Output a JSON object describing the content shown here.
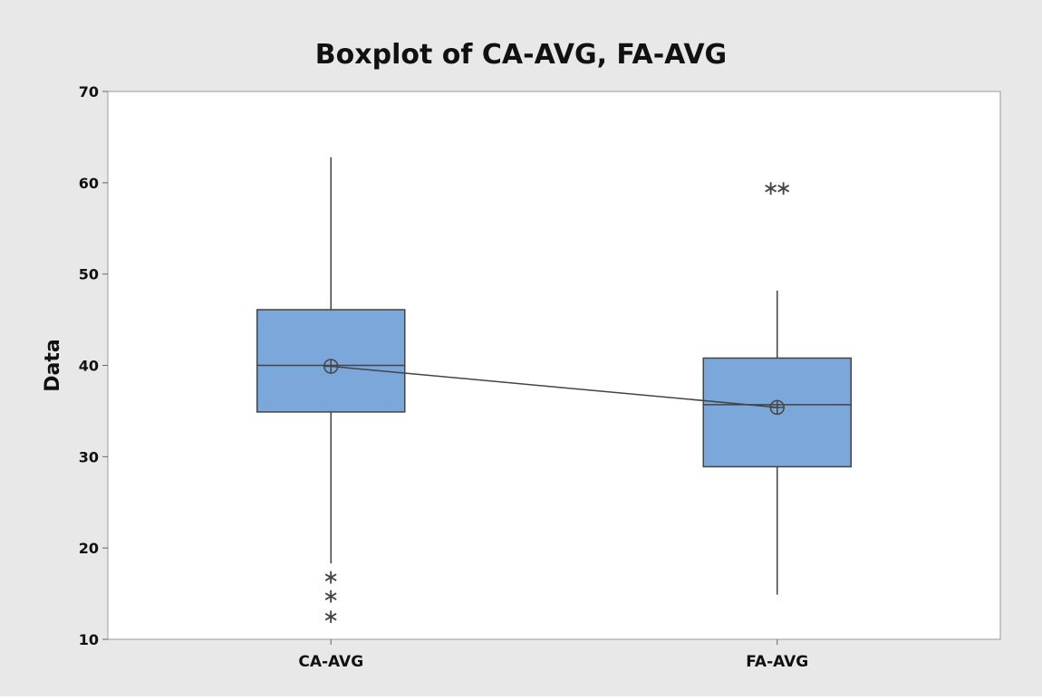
{
  "chart_data": {
    "type": "boxplot",
    "title": "Boxplot of CA-AVG, FA-AVG",
    "xlabel": "",
    "ylabel": "Data",
    "ylim": [
      10,
      70
    ],
    "yticks": [
      10,
      20,
      30,
      40,
      50,
      60,
      70
    ],
    "grid": false,
    "categories": [
      "CA-AVG",
      "FA-AVG"
    ],
    "series": [
      {
        "category": "CA-AVG",
        "whisker_low": 18.3,
        "q1": 34.9,
        "median": 40.0,
        "q3": 46.1,
        "whisker_high": 62.8,
        "mean": 39.9,
        "outliers": [
          17.0,
          14.9,
          12.7
        ]
      },
      {
        "category": "FA-AVG",
        "whisker_low": 14.9,
        "q1": 28.9,
        "median": 35.7,
        "q3": 40.8,
        "whisker_high": 48.2,
        "mean": 35.4,
        "outliers": [
          59.6,
          59.6
        ]
      }
    ],
    "mean_connect_line": true,
    "colors": {
      "outer_background": "#e8e8e8",
      "plot_background": "#ffffff",
      "box_fill": "#7ba7da",
      "line": "#444444"
    }
  }
}
